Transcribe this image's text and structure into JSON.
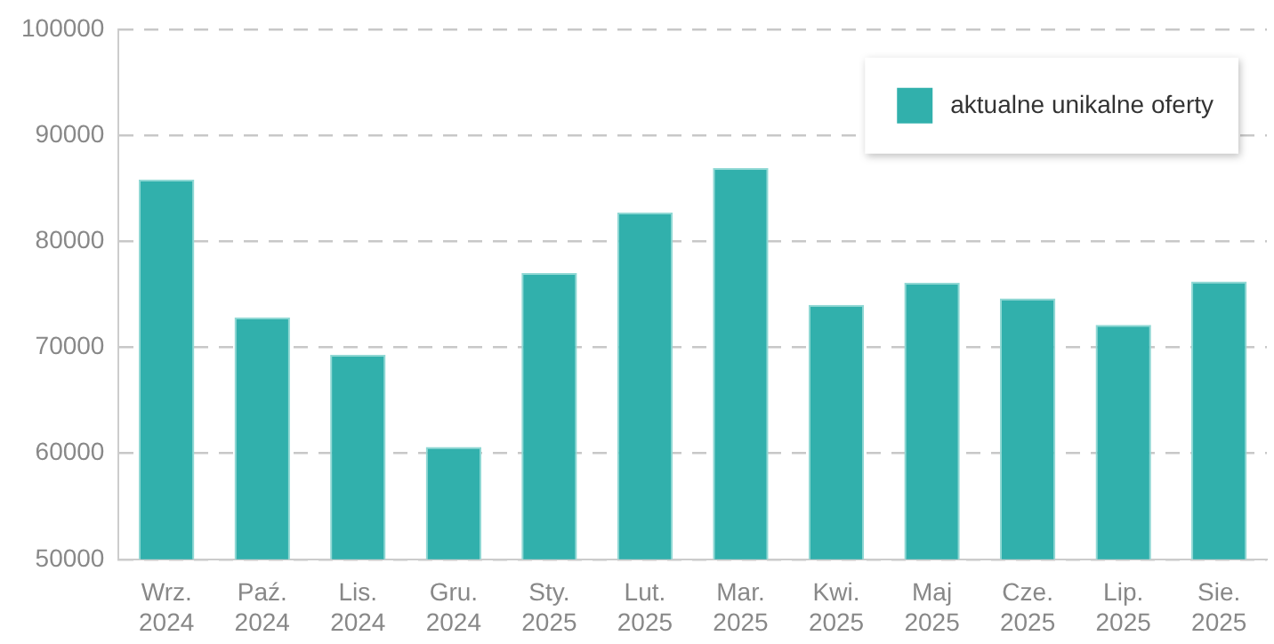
{
  "chart_data": {
    "type": "bar",
    "categories": [
      "Wrz. 2024",
      "Paź. 2024",
      "Lis. 2024",
      "Gru. 2024",
      "Sty. 2025",
      "Lut. 2025",
      "Mar. 2025",
      "Kwi. 2025",
      "Maj 2025",
      "Cze. 2025",
      "Lip. 2025",
      "Sie. 2025"
    ],
    "series": [
      {
        "name": "aktualne unikalne oferty",
        "color": "#31b0ac",
        "values": [
          85800,
          72800,
          69300,
          60600,
          77000,
          82700,
          86900,
          74000,
          76100,
          74600,
          72100,
          76200
        ]
      }
    ],
    "ylim": [
      50000,
      100000
    ],
    "yticks": [
      50000,
      60000,
      70000,
      80000,
      90000,
      100000
    ],
    "grid": "y",
    "legend": "top right"
  }
}
